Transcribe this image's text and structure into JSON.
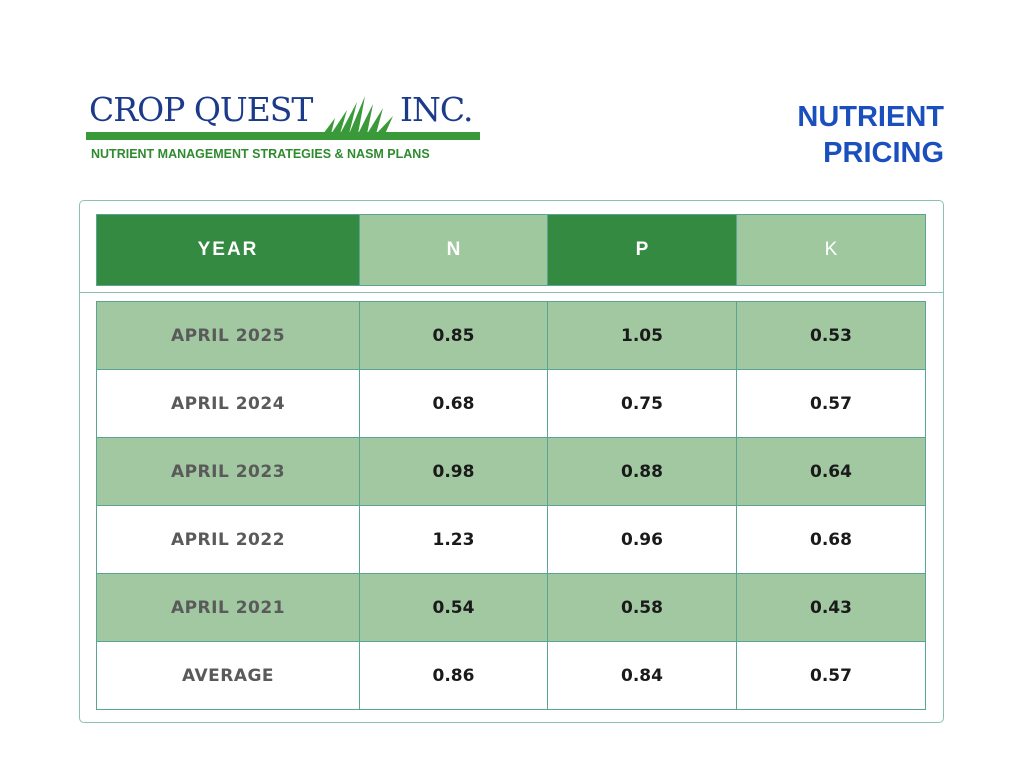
{
  "logo": {
    "company": "CROP QUEST",
    "suffix": "INC.",
    "tagline": "NUTRIENT MANAGEMENT STRATEGIES & NASM PLANS"
  },
  "title": {
    "line1": "NUTRIENT",
    "line2": "PRICING"
  },
  "colors": {
    "brand_blue": "#1c3a8a",
    "title_blue": "#1a4fbd",
    "dark_green": "#338a40",
    "light_green": "#a1c8a1",
    "border_teal": "#5aa494"
  },
  "table": {
    "headers": [
      "YEAR",
      "N",
      "P",
      "K"
    ],
    "rows": [
      {
        "year": "APRIL 2025",
        "n": "0.85",
        "p": "1.05",
        "k": "0.53"
      },
      {
        "year": "APRIL 2024",
        "n": "0.68",
        "p": "0.75",
        "k": "0.57"
      },
      {
        "year": "APRIL 2023",
        "n": "0.98",
        "p": "0.88",
        "k": "0.64"
      },
      {
        "year": "APRIL 2022",
        "n": "1.23",
        "p": "0.96",
        "k": "0.68"
      },
      {
        "year": "APRIL 2021",
        "n": "0.54",
        "p": "0.58",
        "k": "0.43"
      },
      {
        "year": "AVERAGE",
        "n": "0.86",
        "p": "0.84",
        "k": "0.57"
      }
    ]
  }
}
